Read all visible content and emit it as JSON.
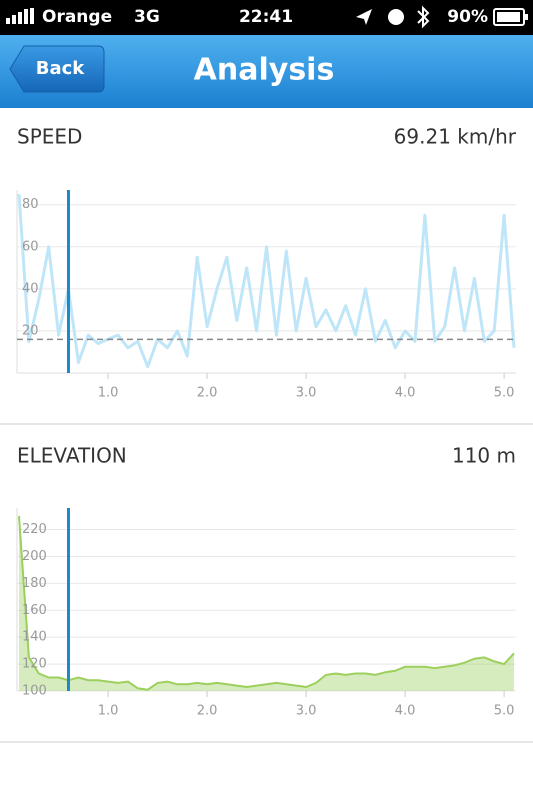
{
  "status_bar": {
    "carrier": "Orange",
    "network": "3G",
    "time": "22:41",
    "battery": "90%"
  },
  "nav": {
    "back": "Back",
    "title": "Analysis"
  },
  "chart_data": [
    {
      "type": "line",
      "title": "SPEED",
      "value_text": "69.21 km/hr",
      "color": "#bfe6f8",
      "x": [
        0.1,
        0.2,
        0.3,
        0.4,
        0.5,
        0.6,
        0.7,
        0.8,
        0.9,
        1.0,
        1.1,
        1.2,
        1.3,
        1.4,
        1.5,
        1.6,
        1.7,
        1.8,
        1.9,
        2.0,
        2.1,
        2.2,
        2.3,
        2.4,
        2.5,
        2.6,
        2.7,
        2.8,
        2.9,
        3.0,
        3.1,
        3.2,
        3.3,
        3.4,
        3.5,
        3.6,
        3.7,
        3.8,
        3.9,
        4.0,
        4.1,
        4.2,
        4.3,
        4.4,
        4.5,
        4.6,
        4.7,
        4.8,
        4.9,
        5.0,
        5.1
      ],
      "values": [
        85,
        15,
        35,
        60,
        18,
        40,
        5,
        18,
        14,
        16,
        18,
        12,
        15,
        3,
        16,
        12,
        20,
        8,
        55,
        22,
        40,
        55,
        25,
        50,
        20,
        60,
        18,
        58,
        20,
        45,
        22,
        30,
        20,
        32,
        18,
        40,
        15,
        25,
        12,
        20,
        15,
        75,
        15,
        22,
        50,
        20,
        45,
        15,
        20,
        75,
        12
      ],
      "average": 16,
      "cursor_x": 0.6,
      "xlim": [
        0.08,
        5.12
      ],
      "ylim": [
        0,
        87
      ],
      "xticks": [
        {
          "value": 1,
          "label": "1.0"
        },
        {
          "value": 2,
          "label": "2.0"
        },
        {
          "value": 3,
          "label": "3.0"
        },
        {
          "value": 4,
          "label": "4.0"
        },
        {
          "value": 5,
          "label": "5.0"
        }
      ],
      "yticks": [
        20,
        40,
        60,
        80
      ],
      "grid": true
    },
    {
      "type": "area",
      "title": "ELEVATION",
      "value_text": "110 m",
      "color": "#9ccf5c",
      "x": [
        0.1,
        0.2,
        0.3,
        0.4,
        0.5,
        0.6,
        0.7,
        0.8,
        0.9,
        1.0,
        1.1,
        1.2,
        1.3,
        1.4,
        1.5,
        1.6,
        1.7,
        1.8,
        1.9,
        2.0,
        2.1,
        2.2,
        2.3,
        2.4,
        2.5,
        2.6,
        2.7,
        2.8,
        2.9,
        3.0,
        3.1,
        3.2,
        3.3,
        3.4,
        3.5,
        3.6,
        3.7,
        3.8,
        3.9,
        4.0,
        4.1,
        4.2,
        4.3,
        4.4,
        4.5,
        4.6,
        4.7,
        4.8,
        4.9,
        5.0,
        5.1
      ],
      "values": [
        230,
        125,
        113,
        110,
        110,
        108,
        110,
        108,
        108,
        107,
        106,
        107,
        102,
        101,
        106,
        107,
        105,
        105,
        106,
        105,
        106,
        105,
        104,
        103,
        104,
        105,
        106,
        105,
        104,
        103,
        106,
        112,
        113,
        112,
        113,
        113,
        112,
        114,
        115,
        118,
        118,
        118,
        117,
        118,
        119,
        121,
        124,
        125,
        122,
        120,
        128
      ],
      "cursor_x": 0.6,
      "xlim": [
        0.08,
        5.12
      ],
      "ylim": [
        100,
        236
      ],
      "xticks": [
        {
          "value": 1,
          "label": "1.0"
        },
        {
          "value": 2,
          "label": "2.0"
        },
        {
          "value": 3,
          "label": "3.0"
        },
        {
          "value": 4,
          "label": "4.0"
        },
        {
          "value": 5,
          "label": "5.0"
        }
      ],
      "yticks": [
        100,
        120,
        140,
        160,
        180,
        200,
        220
      ],
      "grid": true
    }
  ]
}
